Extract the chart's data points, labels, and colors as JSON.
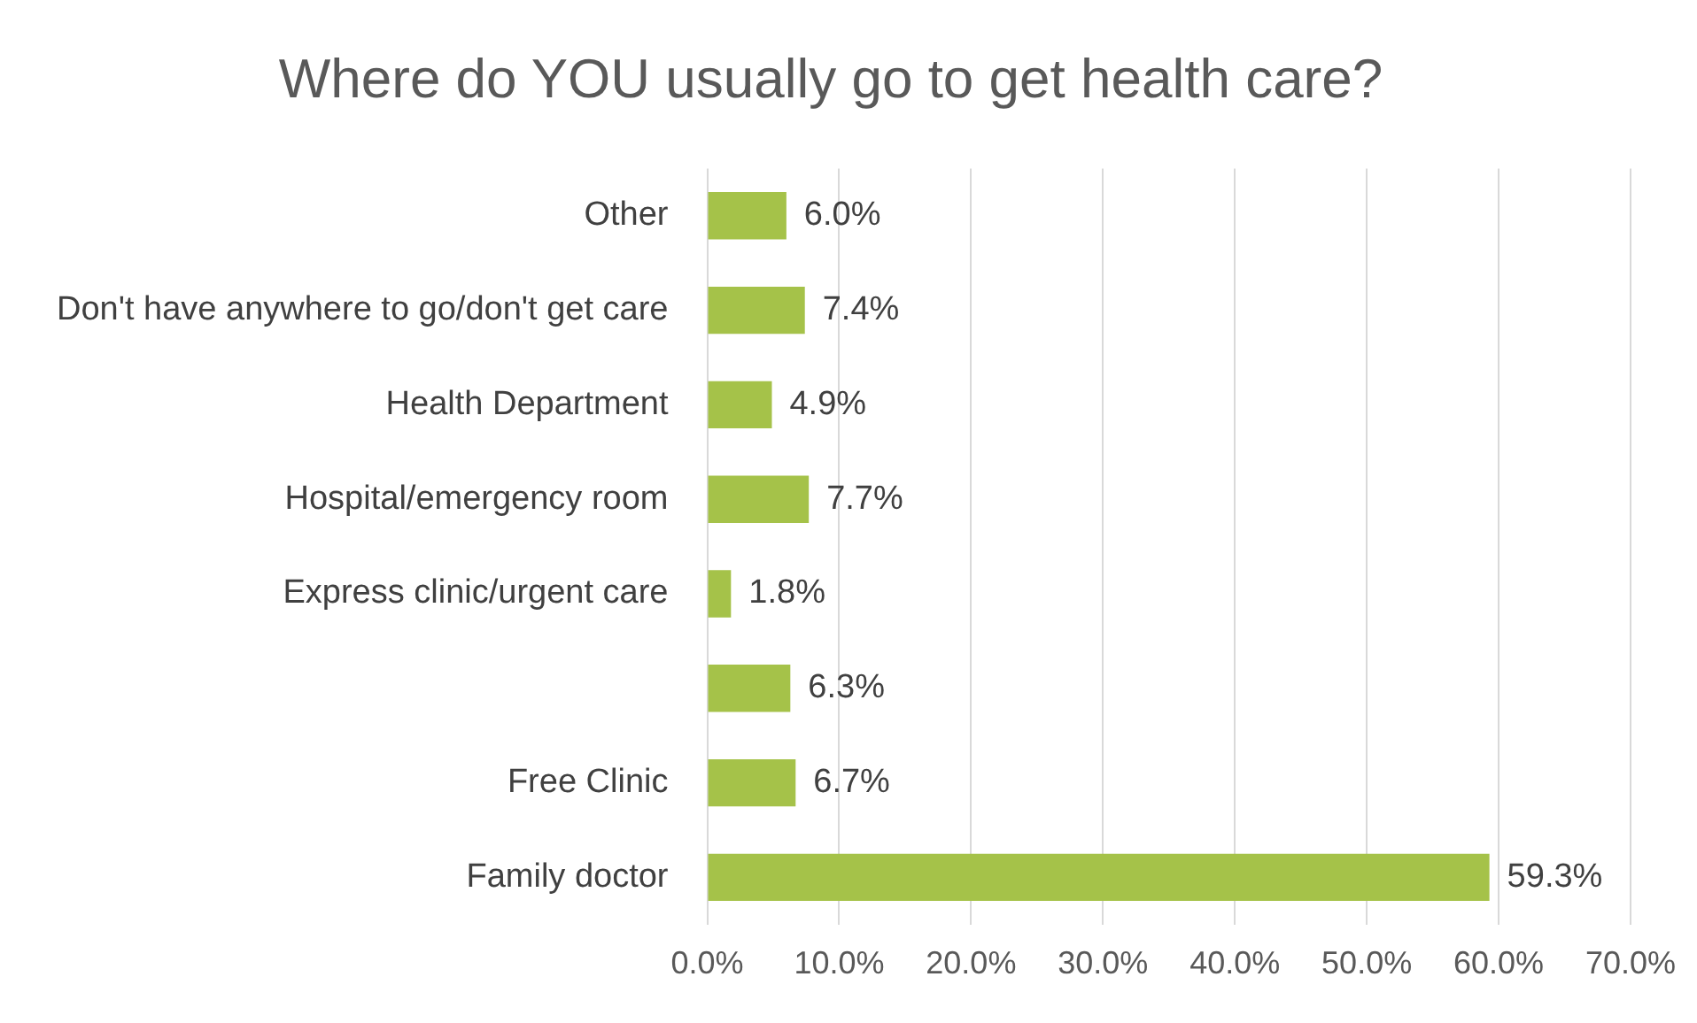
{
  "chart_data": {
    "type": "bar",
    "orientation": "horizontal",
    "title": "Where do YOU usually go to get health care?",
    "categories": [
      "Other",
      "Don't have anywhere to go/don't get care",
      "Health Department",
      "Hospital/emergency room",
      "Express clinic/urgent care",
      null,
      "Free Clinic",
      "Family doctor"
    ],
    "values": [
      6.0,
      7.4,
      4.9,
      7.7,
      1.8,
      6.3,
      6.7,
      59.3
    ],
    "value_labels": [
      "6.0%",
      "7.4%",
      "4.9%",
      "7.7%",
      "1.8%",
      "6.3%",
      "6.7%",
      "59.3%"
    ],
    "color": "#a5c249",
    "xlim": [
      0,
      70
    ],
    "xticks": [
      {
        "value": 0,
        "label": "0.0%"
      },
      {
        "value": 10,
        "label": "10.0%"
      },
      {
        "value": 20,
        "label": "20.0%"
      },
      {
        "value": 30,
        "label": "30.0%"
      },
      {
        "value": 40,
        "label": "40.0%"
      },
      {
        "value": 50,
        "label": "50.0%"
      },
      {
        "value": 60,
        "label": "60.0%"
      },
      {
        "value": 70,
        "label": "70.0%"
      }
    ],
    "grid": "x",
    "legend": false
  }
}
